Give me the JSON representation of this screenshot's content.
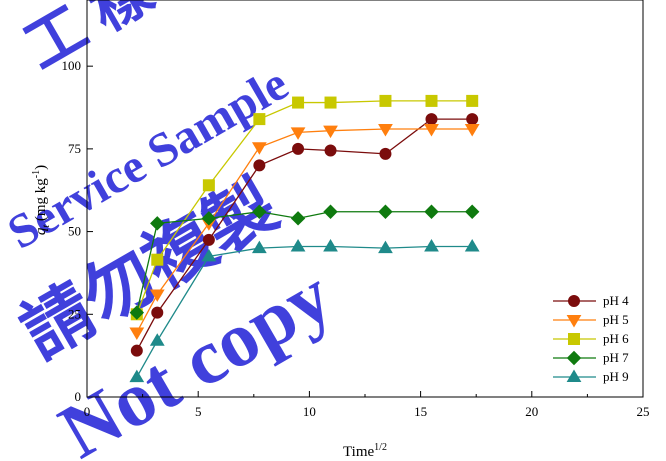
{
  "chart_data": {
    "type": "line",
    "xlabel_base": "Time",
    "xlabel_sup": "1/2",
    "ylabel_parts": [
      "q",
      "t",
      " (mg kg",
      "-1",
      ")"
    ],
    "xlim": [
      0,
      25
    ],
    "ylim": [
      0,
      120
    ],
    "xticks": [
      0,
      5,
      10,
      15,
      20,
      25
    ],
    "yticks": [
      0,
      25,
      50,
      75,
      100
    ],
    "legend_position": "bottom-right",
    "grid": false,
    "x": [
      2.24,
      3.16,
      5.48,
      7.75,
      9.49,
      10.95,
      13.42,
      15.49,
      17.32
    ],
    "series": [
      {
        "name": "pH 4",
        "color": "#7b0c0c",
        "marker": "circle",
        "values": [
          14,
          25.5,
          47.5,
          70,
          75,
          74.5,
          73.5,
          84,
          84
        ]
      },
      {
        "name": "pH 5",
        "color": "#ff7f0e",
        "marker": "triangle-down",
        "values": [
          19.5,
          31,
          52.5,
          75.5,
          80,
          80.5,
          81,
          81,
          81
        ]
      },
      {
        "name": "pH 6",
        "color": "#c8c800",
        "marker": "square",
        "values": [
          25,
          41.5,
          64,
          84,
          89,
          89,
          89.5,
          89.5,
          89.5
        ]
      },
      {
        "name": "pH 7",
        "color": "#0f7a0f",
        "marker": "diamond",
        "values": [
          25.5,
          52.5,
          54,
          56,
          54,
          56,
          56,
          56,
          56
        ]
      },
      {
        "name": "pH 9",
        "color": "#1f8a8a",
        "marker": "triangle-up",
        "values": [
          6,
          17,
          42.5,
          45,
          45.5,
          45.5,
          45,
          45.5,
          45.5
        ]
      }
    ]
  },
  "watermark": {
    "lines": [
      "Service Sample",
      "請勿複製",
      "Not copy",
      "工 樣"
    ],
    "color": "#1f1fd6"
  }
}
